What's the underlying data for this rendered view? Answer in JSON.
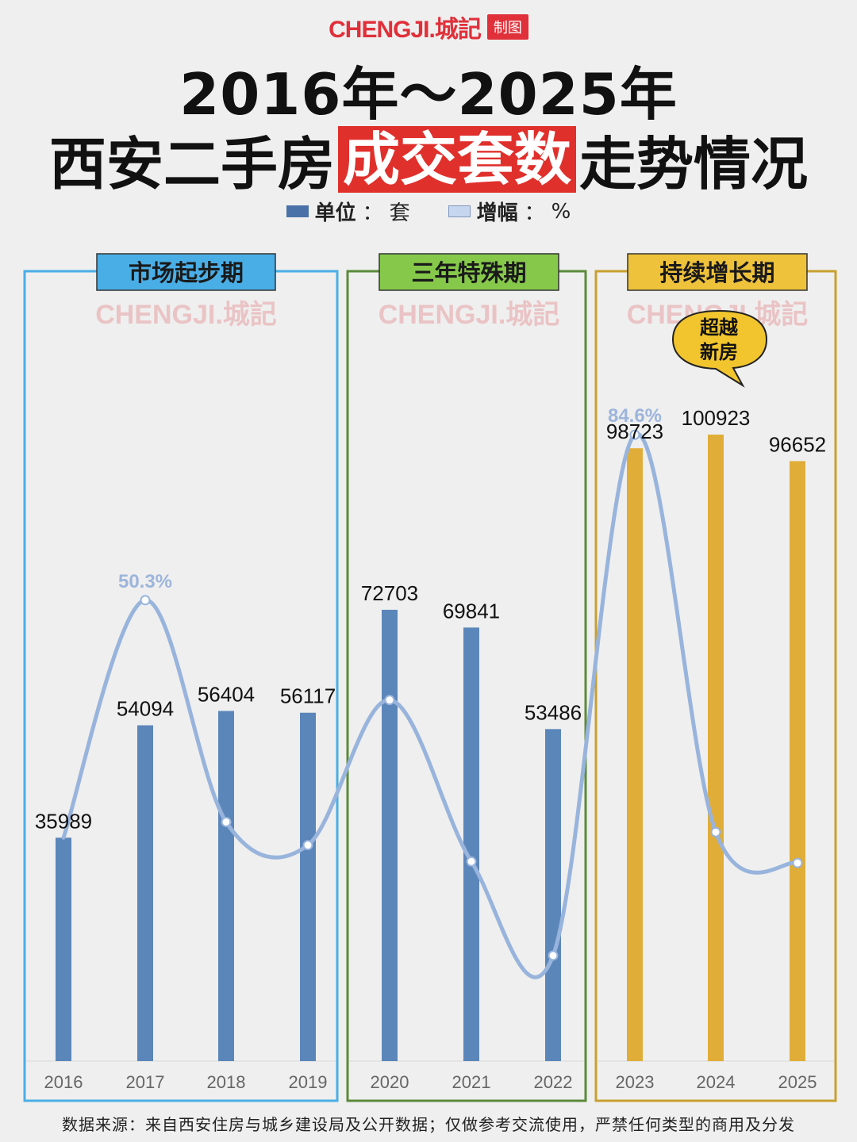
{
  "brand": {
    "name": "CHENGJI.城記",
    "tag": "制图"
  },
  "title": {
    "line1": "2016年～2025年",
    "line2_pre": "西安二手房",
    "line2_highlight": "成交套数",
    "line2_post": "走势情况"
  },
  "legend": [
    {
      "label": "单位",
      "value": "套"
    },
    {
      "label": "增幅",
      "value": "%"
    }
  ],
  "periods": [
    {
      "name": "市场起步期",
      "color": "#4aaee6",
      "label_bg": "#4aaee6"
    },
    {
      "name": "三年特殊期",
      "color": "#5b8a3a",
      "label_bg": "#86c94a"
    },
    {
      "name": "持续增长期",
      "color": "#c8a030",
      "label_bg": "#eec23a"
    }
  ],
  "watermark": "CHENGJI.城記",
  "badge": {
    "line1": "超越",
    "line2": "新房"
  },
  "footer": "数据来源：来自西安住房与城乡建设局及公开数据；仅做参考交流使用，严禁任何类型的商用及分发",
  "chart_data": {
    "type": "bar",
    "categories": [
      "2016",
      "2017",
      "2018",
      "2019",
      "2020",
      "2021",
      "2022",
      "2023",
      "2024",
      "2025"
    ],
    "series": [
      {
        "name": "单位：套",
        "type": "bar",
        "values": [
          35989,
          54094,
          56404,
          56117,
          72703,
          69841,
          53486,
          98723,
          100923,
          96652
        ],
        "colors": [
          "#5b86ba",
          "#5b86ba",
          "#5b86ba",
          "#5b86ba",
          "#5b86ba",
          "#5b86ba",
          "#5b86ba",
          "#e0ad38",
          "#e0ad38",
          "#e0ad38"
        ]
      },
      {
        "name": "增幅：%",
        "type": "line",
        "smooth": true,
        "color": "#98b4dc",
        "values": [
          null,
          50.3,
          4.3,
          -0.5,
          29.6,
          -3.9,
          -23.4,
          84.6,
          2.2,
          -4.2
        ],
        "labeled_points": {
          "2017": "50.3%",
          "2023": "84.6%"
        }
      }
    ],
    "bar_value_range": [
      0,
      110000
    ],
    "line_value_range": [
      -30,
      95
    ],
    "xlabel": "",
    "ylabel": "",
    "grid": false
  }
}
